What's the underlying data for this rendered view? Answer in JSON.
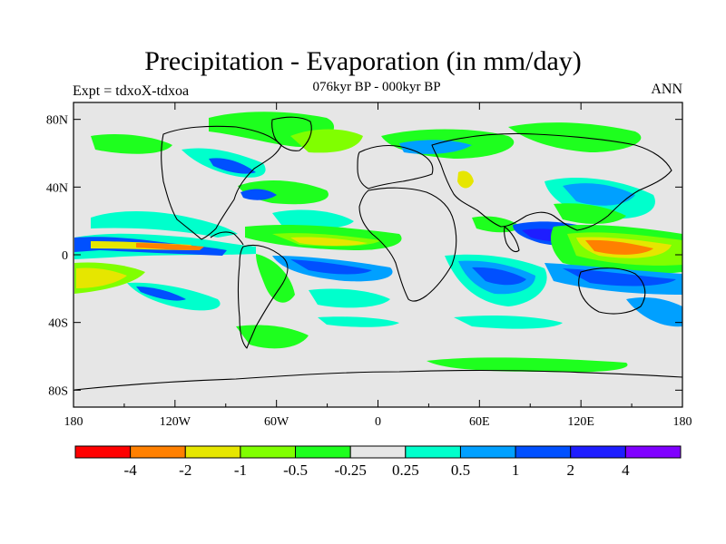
{
  "title": "Precipitation - Evaporation (in mm/day)",
  "subtitle": "076kyr BP - 000kyr BP",
  "left_label": "Expt = tdxoX-tdxoa",
  "right_label": "ANN",
  "map": {
    "lon_range": [
      -180,
      180
    ],
    "lat_range": [
      -90,
      90
    ],
    "x_ticks": [
      {
        "value": -180,
        "label": "180"
      },
      {
        "value": -120,
        "label": "120W"
      },
      {
        "value": -60,
        "label": "60W"
      },
      {
        "value": 0,
        "label": "0"
      },
      {
        "value": 60,
        "label": "60E"
      },
      {
        "value": 120,
        "label": "120E"
      },
      {
        "value": 180,
        "label": "180"
      }
    ],
    "y_ticks": [
      {
        "value": 80,
        "label": "80N"
      },
      {
        "value": 40,
        "label": "40N"
      },
      {
        "value": 0,
        "label": "0"
      },
      {
        "value": -40,
        "label": "40S"
      },
      {
        "value": -80,
        "label": "80S"
      }
    ],
    "background_color": "#e6e6e6"
  },
  "colorbar": {
    "colors": [
      "#ff0000",
      "#ff8000",
      "#e6e600",
      "#80ff00",
      "#1eff1e",
      "#e6e6e6",
      "#00ffcc",
      "#00a0ff",
      "#0050ff",
      "#1e1eff",
      "#8000ff"
    ],
    "labels": [
      "-4",
      "-2",
      "-1",
      "-0.5",
      "-0.25",
      "0.25",
      "0.5",
      "1",
      "2",
      "4"
    ]
  }
}
